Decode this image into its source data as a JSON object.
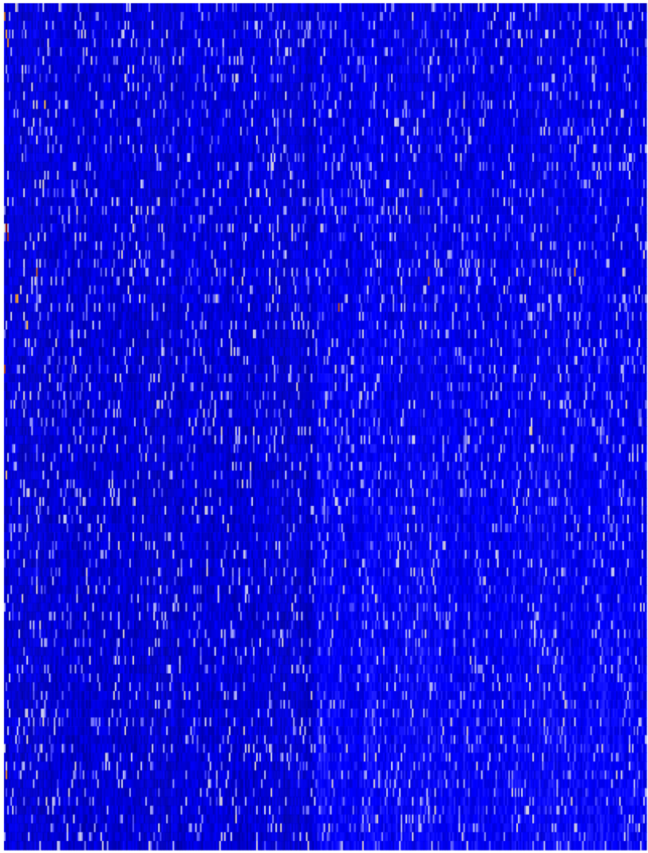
{
  "chart_data": {
    "type": "heatmap",
    "title": "",
    "xlabel": "",
    "ylabel": "",
    "legend": "none",
    "grid": false,
    "colorscale": {
      "low": "#00008b",
      "mid_low": "#0000ff",
      "mid": "#3a3aff",
      "mid_high": "#cfd2f2",
      "high": "#f5b84a",
      "max": "#8b0000"
    },
    "columns": 400,
    "rows": 96,
    "column_split_index": 193,
    "value_range": [
      0,
      1
    ],
    "base_level_left": 0.22,
    "base_level_right": 0.27,
    "hot_cells": [
      {
        "row": 1,
        "col": 0,
        "value": 0.92
      },
      {
        "row": 3,
        "col": 1,
        "value": 0.88
      },
      {
        "row": 4,
        "col": 2,
        "value": 0.9
      },
      {
        "row": 11,
        "col": 25,
        "value": 0.86
      },
      {
        "row": 21,
        "col": 259,
        "value": 0.84
      },
      {
        "row": 25,
        "col": 1,
        "value": 1.0
      },
      {
        "row": 26,
        "col": 2,
        "value": 0.96
      },
      {
        "row": 30,
        "col": 20,
        "value": 0.93
      },
      {
        "row": 30,
        "col": 355,
        "value": 0.9
      },
      {
        "row": 31,
        "col": 264,
        "value": 0.92
      },
      {
        "row": 33,
        "col": 7,
        "value": 0.9
      },
      {
        "row": 33,
        "col": 8,
        "value": 0.88
      },
      {
        "row": 34,
        "col": 208,
        "value": 0.94
      },
      {
        "row": 36,
        "col": 14,
        "value": 0.86
      },
      {
        "row": 41,
        "col": 0,
        "value": 0.95
      },
      {
        "row": 48,
        "col": 328,
        "value": 0.8
      },
      {
        "row": 53,
        "col": 1,
        "value": 0.82
      },
      {
        "row": 87,
        "col": 1,
        "value": 0.9
      }
    ]
  }
}
